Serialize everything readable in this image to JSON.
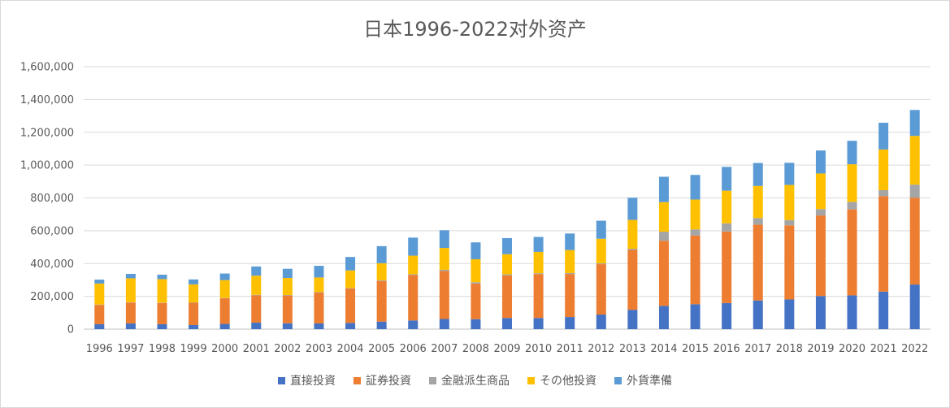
{
  "chart_data": {
    "type": "bar",
    "stacked": true,
    "title": "日本1996-2022对外资产",
    "xlabel": "",
    "ylabel": "",
    "ylim": [
      0,
      1600000
    ],
    "yticks": [
      0,
      200000,
      400000,
      600000,
      800000,
      1000000,
      1200000,
      1400000,
      1600000
    ],
    "ytick_labels": [
      "0",
      "200,000",
      "400,000",
      "600,000",
      "800,000",
      "1,000,000",
      "1,200,000",
      "1,400,000",
      "1,600,000"
    ],
    "grid": true,
    "legend_position": "bottom",
    "categories": [
      "1996",
      "1997",
      "1998",
      "1999",
      "2000",
      "2001",
      "2002",
      "2003",
      "2004",
      "2005",
      "2006",
      "2007",
      "2008",
      "2009",
      "2010",
      "2011",
      "2012",
      "2013",
      "2014",
      "2015",
      "2016",
      "2017",
      "2018",
      "2019",
      "2020",
      "2021",
      "2022"
    ],
    "series": [
      {
        "name": "直接投資",
        "color": "#4472c4",
        "values": [
          30000,
          35000,
          30000,
          25000,
          32000,
          40000,
          36000,
          35000,
          38000,
          46000,
          53000,
          62000,
          61000,
          68000,
          68000,
          74000,
          89000,
          118000,
          142000,
          152000,
          159000,
          175000,
          181000,
          202000,
          206000,
          229000,
          272000
        ]
      },
      {
        "name": "証券投資",
        "color": "#ed7d31",
        "values": [
          118000,
          127000,
          130000,
          136000,
          156000,
          166000,
          169000,
          188000,
          210000,
          248000,
          277000,
          293000,
          216000,
          260000,
          268000,
          262000,
          307000,
          365000,
          397000,
          419000,
          436000,
          462000,
          452000,
          491000,
          524000,
          582000,
          529000
        ]
      },
      {
        "name": "金融派生商品",
        "color": "#a5a5a5",
        "values": [
          2000,
          2000,
          2000,
          2000,
          2000,
          3000,
          3000,
          3000,
          3000,
          4000,
          5000,
          7000,
          9000,
          6000,
          5000,
          6000,
          5000,
          7000,
          55000,
          37000,
          50000,
          40000,
          32000,
          39000,
          46000,
          36000,
          80000
        ]
      },
      {
        "name": "その他投資",
        "color": "#ffc000",
        "values": [
          128000,
          146000,
          143000,
          110000,
          109000,
          117000,
          104000,
          89000,
          107000,
          104000,
          113000,
          133000,
          140000,
          123000,
          130000,
          140000,
          150000,
          176000,
          180000,
          182000,
          199000,
          196000,
          214000,
          217000,
          229000,
          248000,
          297000
        ]
      },
      {
        "name": "外貨準備",
        "color": "#5b9bd5",
        "values": [
          24000,
          27000,
          27000,
          30000,
          40000,
          56000,
          56000,
          71000,
          82000,
          104000,
          110000,
          108000,
          103000,
          98000,
          91000,
          101000,
          110000,
          135000,
          155000,
          150000,
          145000,
          140000,
          135000,
          140000,
          143000,
          163000,
          158000
        ]
      }
    ]
  }
}
